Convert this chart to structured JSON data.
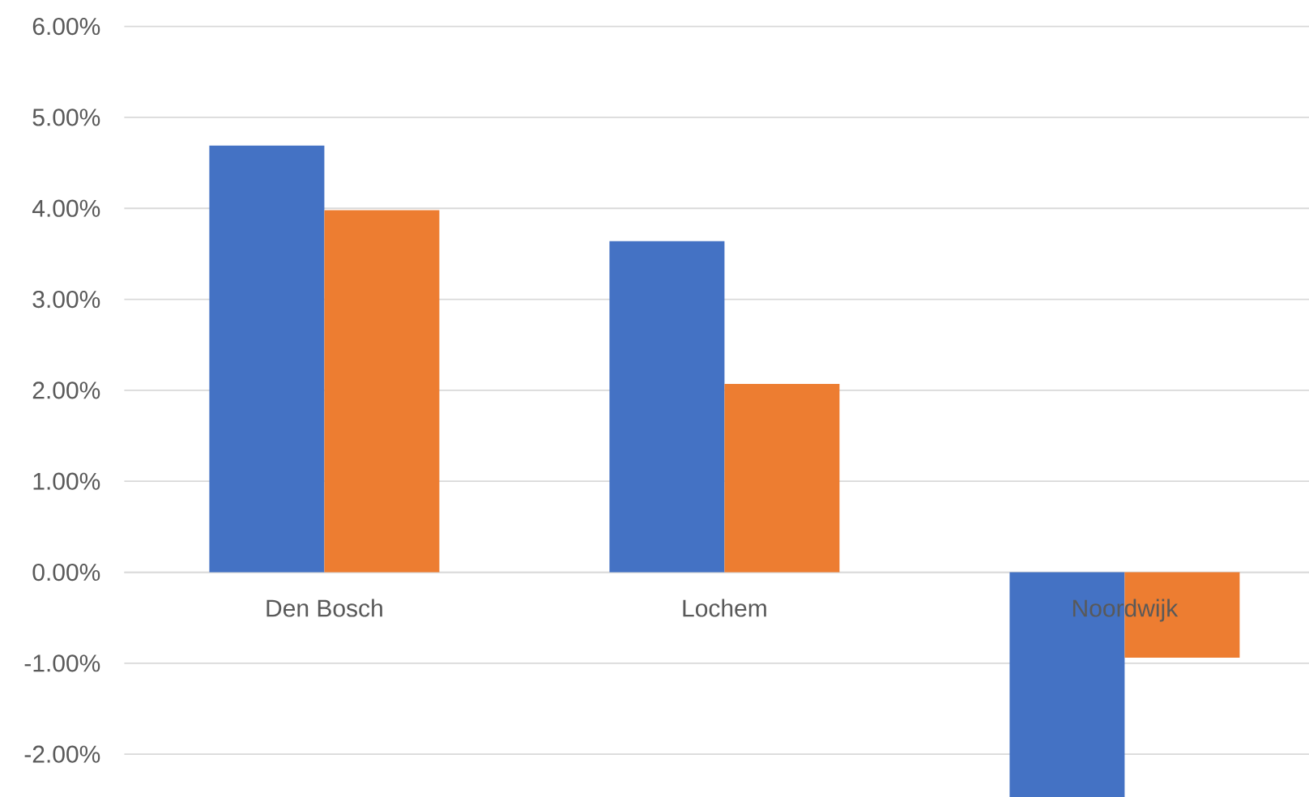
{
  "chart_data": {
    "type": "bar",
    "categories": [
      "Den Bosch",
      "Lochem",
      "Noordwijk"
    ],
    "series": [
      {
        "color": "#4472c4",
        "values": [
          4.69,
          3.64,
          -2.47
        ]
      },
      {
        "color": "#ed7d31",
        "values": [
          3.98,
          2.07,
          -0.94
        ]
      }
    ],
    "ylim": [
      -2.47,
      6
    ],
    "yticks": [
      {
        "value": -2,
        "label": "-2.00%"
      },
      {
        "value": -1,
        "label": "-1.00%"
      },
      {
        "value": 0,
        "label": "0.00%"
      },
      {
        "value": 1,
        "label": "1.00%"
      },
      {
        "value": 2,
        "label": "2.00%"
      },
      {
        "value": 3,
        "label": "3.00%"
      },
      {
        "value": 4,
        "label": "4.00%"
      },
      {
        "value": 5,
        "label": "5.00%"
      },
      {
        "value": 6,
        "label": "6.00%"
      }
    ],
    "grid": "y"
  }
}
